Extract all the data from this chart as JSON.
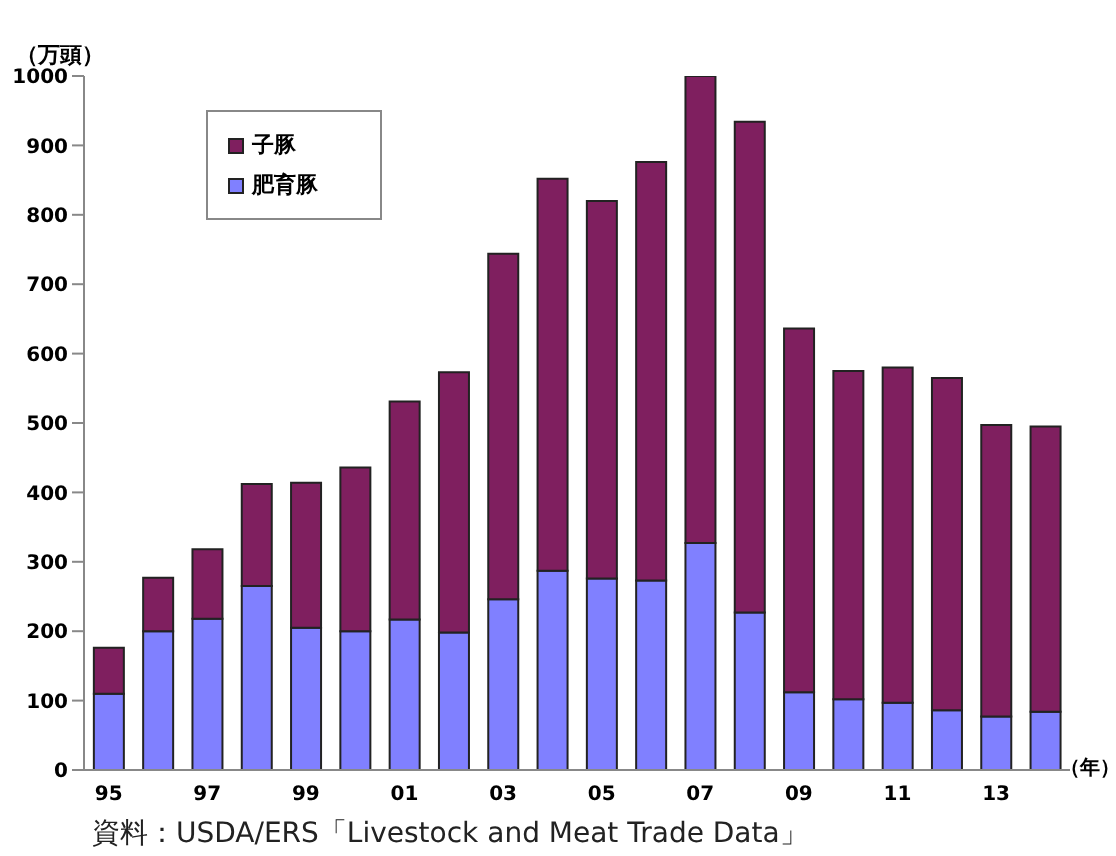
{
  "chart_data": {
    "type": "bar",
    "stacked": true,
    "ylabel": "（万頭）",
    "xlabel": "（年）",
    "categories": [
      "95",
      null,
      "97",
      null,
      "99",
      null,
      "01",
      null,
      "03",
      null,
      "05",
      null,
      "07",
      null,
      "09",
      null,
      "11",
      null,
      "13",
      null
    ],
    "series": [
      {
        "name": "肥育豚",
        "color": "#8080ff",
        "values": [
          110,
          200,
          218,
          265,
          205,
          200,
          217,
          198,
          246,
          287,
          276,
          273,
          327,
          227,
          112,
          102,
          97,
          86,
          77,
          84
        ]
      },
      {
        "name": "子豚",
        "color": "#7f1f5f",
        "values": [
          66,
          77,
          100,
          147,
          209,
          236,
          314,
          375,
          498,
          565,
          544,
          603,
          673,
          707,
          524,
          473,
          483,
          479,
          420,
          411
        ]
      }
    ],
    "ylim": [
      0,
      1000
    ],
    "yticks": [
      0,
      100,
      200,
      300,
      400,
      500,
      600,
      700,
      800,
      900,
      1000
    ],
    "grid": false,
    "legend": "top left",
    "annotations": [
      "資料：USDA/ERS「Livestock and Meat Trade Data」"
    ]
  }
}
